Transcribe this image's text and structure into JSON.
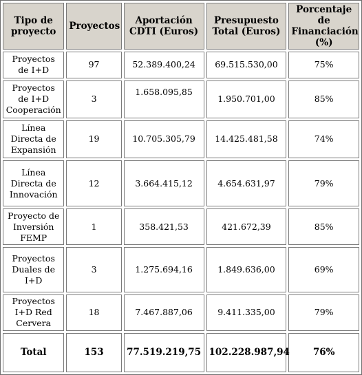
{
  "columns": [
    "Tipo de proyecto",
    "Proyectos",
    "Aportación CDTI (Euros)",
    "Presupuesto Total (Euros)",
    "Porcentaje de Financiación (%)"
  ],
  "rows": [
    {
      "tipo": "Proyectos de I+D",
      "proyectos": "97",
      "aportacion": "52.389.400,24",
      "presupuesto": "69.515.530,00",
      "porcentaje": "75%"
    },
    {
      "tipo": "Proyectos de I+D Cooperación",
      "proyectos": "3",
      "aportacion": "1.658.095,85",
      "presupuesto": "1.950.701,00",
      "porcentaje": "85%"
    },
    {
      "tipo": "Línea Directa de Expansión",
      "proyectos": "19",
      "aportacion": "10.705.305,79",
      "presupuesto": "14.425.481,58",
      "porcentaje": "74%"
    },
    {
      "tipo": "Línea Directa de Innovación",
      "proyectos": "12",
      "aportacion": "3.664.415,12",
      "presupuesto": "4.654.631,97",
      "porcentaje": "79%"
    },
    {
      "tipo": "Proyecto de Inversión FEMP",
      "proyectos": "1",
      "aportacion": "358.421,53",
      "presupuesto": "421.672,39",
      "porcentaje": "85%"
    },
    {
      "tipo": "Proyectos Duales de I+D",
      "proyectos": "3",
      "aportacion": "1.275.694,16",
      "presupuesto": "1.849.636,00",
      "porcentaje": "69%"
    },
    {
      "tipo": "Proyectos I+D Red Cervera",
      "proyectos": "18",
      "aportacion": "7.467.887,06",
      "presupuesto": "9.411.335,00",
      "porcentaje": "79%"
    }
  ],
  "total": {
    "tipo": "Total",
    "proyectos": "153",
    "aportacion": "77.519.219,75",
    "presupuesto": "102.228.987,94",
    "porcentaje": "76%"
  }
}
